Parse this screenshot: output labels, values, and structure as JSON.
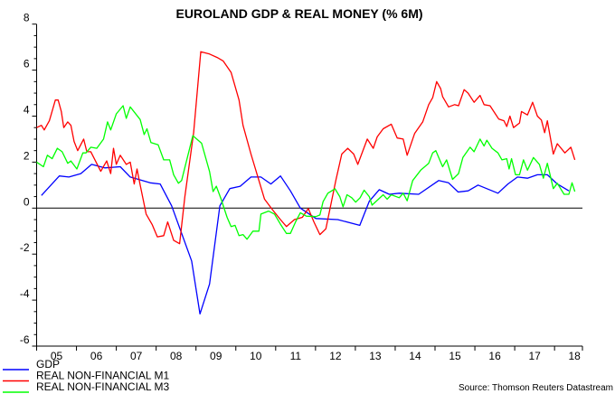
{
  "chart_data": {
    "type": "line",
    "title": "EUROLAND GDP & REAL MONEY (% 6M)",
    "source": "Source: Thomson Reuters Datastream",
    "xlim": [
      2005.0,
      2018.7
    ],
    "ylim": [
      -6,
      8
    ],
    "yticks": [
      -6,
      -4,
      -2,
      0,
      2,
      4,
      6,
      8
    ],
    "xtick_labels": [
      "05",
      "06",
      "07",
      "08",
      "09",
      "10",
      "11",
      "12",
      "13",
      "14",
      "15",
      "16",
      "17",
      "18"
    ],
    "grid": false,
    "zero_line": true,
    "legend_placement": "bottom-left",
    "series": [
      {
        "name": "GDP",
        "color": "#0000ff",
        "points": [
          [
            2005.12,
            0.55
          ],
          [
            2005.57,
            1.4
          ],
          [
            2005.81,
            1.35
          ],
          [
            2006.11,
            1.5
          ],
          [
            2006.38,
            1.9
          ],
          [
            2006.71,
            1.75
          ],
          [
            2007.1,
            1.8
          ],
          [
            2007.35,
            1.35
          ],
          [
            2007.85,
            1.1
          ],
          [
            2008.1,
            1.05
          ],
          [
            2008.39,
            0.1
          ],
          [
            2008.89,
            -2.3
          ],
          [
            2009.1,
            -4.6
          ],
          [
            2009.34,
            -3.3
          ],
          [
            2009.6,
            0.1
          ],
          [
            2009.85,
            0.85
          ],
          [
            2010.11,
            0.95
          ],
          [
            2010.38,
            1.35
          ],
          [
            2010.63,
            1.35
          ],
          [
            2010.88,
            1.05
          ],
          [
            2011.12,
            1.4
          ],
          [
            2011.37,
            0.75
          ],
          [
            2011.62,
            0.0
          ],
          [
            2012.01,
            -0.45
          ],
          [
            2012.56,
            -0.5
          ],
          [
            2013.11,
            -0.75
          ],
          [
            2013.35,
            0.3
          ],
          [
            2013.6,
            0.8
          ],
          [
            2013.85,
            0.6
          ],
          [
            2014.1,
            0.65
          ],
          [
            2014.59,
            0.6
          ],
          [
            2015.09,
            1.2
          ],
          [
            2015.34,
            1.1
          ],
          [
            2015.58,
            0.7
          ],
          [
            2015.83,
            0.75
          ],
          [
            2016.08,
            1.0
          ],
          [
            2016.58,
            0.65
          ],
          [
            2016.83,
            1.05
          ],
          [
            2017.07,
            1.35
          ],
          [
            2017.32,
            1.3
          ],
          [
            2017.57,
            1.45
          ],
          [
            2017.82,
            1.45
          ],
          [
            2018.07,
            1.05
          ],
          [
            2018.36,
            0.75
          ]
        ]
      },
      {
        "name": "REAL NON-FINANCIAL M1",
        "color": "#ff0000",
        "points": [
          [
            2005.0,
            3.5
          ],
          [
            2005.12,
            3.6
          ],
          [
            2005.19,
            3.4
          ],
          [
            2005.32,
            3.8
          ],
          [
            2005.47,
            4.7
          ],
          [
            2005.54,
            4.7
          ],
          [
            2005.62,
            4.2
          ],
          [
            2005.68,
            3.5
          ],
          [
            2005.78,
            3.75
          ],
          [
            2005.86,
            3.6
          ],
          [
            2005.94,
            2.9
          ],
          [
            2006.03,
            2.5
          ],
          [
            2006.18,
            3.0
          ],
          [
            2006.26,
            2.45
          ],
          [
            2006.36,
            2.45
          ],
          [
            2006.61,
            1.6
          ],
          [
            2006.76,
            2.05
          ],
          [
            2006.86,
            1.5
          ],
          [
            2006.93,
            2.6
          ],
          [
            2007.0,
            1.9
          ],
          [
            2007.1,
            2.3
          ],
          [
            2007.25,
            1.9
          ],
          [
            2007.35,
            2.0
          ],
          [
            2007.45,
            1.05
          ],
          [
            2007.52,
            1.7
          ],
          [
            2007.6,
            1.0
          ],
          [
            2007.75,
            -0.26
          ],
          [
            2007.9,
            -0.71
          ],
          [
            2008.03,
            -1.25
          ],
          [
            2008.19,
            -1.2
          ],
          [
            2008.29,
            -0.6
          ],
          [
            2008.44,
            -1.4
          ],
          [
            2008.59,
            -1.55
          ],
          [
            2008.72,
            0.5
          ],
          [
            2008.94,
            3.28
          ],
          [
            2009.12,
            6.8
          ],
          [
            2009.34,
            6.7
          ],
          [
            2009.53,
            6.55
          ],
          [
            2009.68,
            6.4
          ],
          [
            2009.88,
            5.9
          ],
          [
            2010.08,
            4.7
          ],
          [
            2010.18,
            3.6
          ],
          [
            2010.38,
            2.35
          ],
          [
            2010.58,
            1.2
          ],
          [
            2010.72,
            0.39
          ],
          [
            2010.92,
            -0.07
          ],
          [
            2011.12,
            -0.5
          ],
          [
            2011.27,
            -0.8
          ],
          [
            2011.47,
            -0.5
          ],
          [
            2011.67,
            -0.4
          ],
          [
            2011.82,
            -0.02
          ],
          [
            2011.96,
            -0.6
          ],
          [
            2012.11,
            -1.15
          ],
          [
            2012.26,
            -0.9
          ],
          [
            2012.51,
            1.2
          ],
          [
            2012.66,
            2.35
          ],
          [
            2012.81,
            2.6
          ],
          [
            2012.96,
            2.35
          ],
          [
            2013.06,
            1.9
          ],
          [
            2013.3,
            3.0
          ],
          [
            2013.45,
            2.6
          ],
          [
            2013.55,
            3.1
          ],
          [
            2013.7,
            3.45
          ],
          [
            2013.9,
            3.65
          ],
          [
            2014.05,
            3.05
          ],
          [
            2014.2,
            3.0
          ],
          [
            2014.3,
            2.3
          ],
          [
            2014.49,
            3.25
          ],
          [
            2014.69,
            3.75
          ],
          [
            2014.84,
            4.5
          ],
          [
            2014.94,
            4.8
          ],
          [
            2015.04,
            5.5
          ],
          [
            2015.14,
            5.2
          ],
          [
            2015.19,
            4.85
          ],
          [
            2015.34,
            4.4
          ],
          [
            2015.49,
            4.5
          ],
          [
            2015.59,
            4.45
          ],
          [
            2015.73,
            5.15
          ],
          [
            2015.83,
            5.0
          ],
          [
            2015.98,
            4.6
          ],
          [
            2016.13,
            4.9
          ],
          [
            2016.23,
            4.5
          ],
          [
            2016.38,
            4.45
          ],
          [
            2016.6,
            3.87
          ],
          [
            2016.73,
            3.8
          ],
          [
            2016.8,
            3.55
          ],
          [
            2016.88,
            4.0
          ],
          [
            2016.97,
            3.5
          ],
          [
            2017.12,
            3.7
          ],
          [
            2017.17,
            4.2
          ],
          [
            2017.32,
            4.05
          ],
          [
            2017.45,
            4.6
          ],
          [
            2017.57,
            4.0
          ],
          [
            2017.67,
            3.83
          ],
          [
            2017.75,
            3.28
          ],
          [
            2017.82,
            3.8
          ],
          [
            2017.97,
            2.35
          ],
          [
            2018.07,
            2.8
          ],
          [
            2018.26,
            2.4
          ],
          [
            2018.41,
            2.65
          ],
          [
            2018.51,
            2.1
          ]
        ]
      },
      {
        "name": "REAL NON-FINANCIAL M3",
        "color": "#00ff00",
        "points": [
          [
            2005.0,
            2.0
          ],
          [
            2005.17,
            1.8
          ],
          [
            2005.27,
            2.3
          ],
          [
            2005.39,
            2.15
          ],
          [
            2005.52,
            2.6
          ],
          [
            2005.64,
            2.45
          ],
          [
            2005.78,
            1.95
          ],
          [
            2005.86,
            2.05
          ],
          [
            2006.01,
            1.7
          ],
          [
            2006.16,
            2.4
          ],
          [
            2006.24,
            2.4
          ],
          [
            2006.36,
            2.65
          ],
          [
            2006.51,
            2.6
          ],
          [
            2006.68,
            3.0
          ],
          [
            2006.78,
            3.75
          ],
          [
            2006.86,
            3.4
          ],
          [
            2007.0,
            4.1
          ],
          [
            2007.17,
            4.45
          ],
          [
            2007.25,
            3.9
          ],
          [
            2007.35,
            4.4
          ],
          [
            2007.6,
            3.85
          ],
          [
            2007.7,
            3.2
          ],
          [
            2007.77,
            3.45
          ],
          [
            2007.87,
            2.85
          ],
          [
            2008.05,
            2.75
          ],
          [
            2008.19,
            2.1
          ],
          [
            2008.34,
            2.1
          ],
          [
            2008.44,
            1.45
          ],
          [
            2008.56,
            1.08
          ],
          [
            2008.64,
            1.2
          ],
          [
            2008.92,
            3.15
          ],
          [
            2009.14,
            2.82
          ],
          [
            2009.34,
            1.59
          ],
          [
            2009.43,
            0.72
          ],
          [
            2009.51,
            0.95
          ],
          [
            2009.63,
            0.39
          ],
          [
            2009.78,
            -0.4
          ],
          [
            2009.88,
            -0.8
          ],
          [
            2009.98,
            -0.75
          ],
          [
            2010.08,
            -1.2
          ],
          [
            2010.18,
            -1.15
          ],
          [
            2010.28,
            -1.35
          ],
          [
            2010.43,
            -1.0
          ],
          [
            2010.58,
            -1.0
          ],
          [
            2010.63,
            -0.26
          ],
          [
            2010.82,
            -0.13
          ],
          [
            2010.97,
            -0.26
          ],
          [
            2011.12,
            -0.7
          ],
          [
            2011.27,
            -1.1
          ],
          [
            2011.37,
            -1.1
          ],
          [
            2011.5,
            -0.6
          ],
          [
            2011.62,
            -0.2
          ],
          [
            2011.77,
            -0.35
          ],
          [
            2012.01,
            -0.37
          ],
          [
            2012.11,
            -0.3
          ],
          [
            2012.19,
            0.28
          ],
          [
            2012.31,
            0.65
          ],
          [
            2012.49,
            0.84
          ],
          [
            2012.61,
            0.5
          ],
          [
            2012.69,
            0.06
          ],
          [
            2012.79,
            0.58
          ],
          [
            2012.91,
            0.45
          ],
          [
            2013.01,
            0.26
          ],
          [
            2013.12,
            0.45
          ],
          [
            2013.22,
            0.78
          ],
          [
            2013.35,
            0.5
          ],
          [
            2013.42,
            0.13
          ],
          [
            2013.7,
            0.58
          ],
          [
            2013.8,
            0.39
          ],
          [
            2013.9,
            0.58
          ],
          [
            2014.1,
            0.45
          ],
          [
            2014.2,
            0.65
          ],
          [
            2014.3,
            0.32
          ],
          [
            2014.44,
            1.2
          ],
          [
            2014.64,
            1.65
          ],
          [
            2014.84,
            1.95
          ],
          [
            2014.94,
            2.4
          ],
          [
            2015.02,
            2.5
          ],
          [
            2015.19,
            1.8
          ],
          [
            2015.29,
            2.1
          ],
          [
            2015.44,
            1.25
          ],
          [
            2015.59,
            1.5
          ],
          [
            2015.7,
            2.2
          ],
          [
            2015.88,
            2.65
          ],
          [
            2015.98,
            2.45
          ],
          [
            2016.13,
            3.0
          ],
          [
            2016.23,
            2.7
          ],
          [
            2016.3,
            2.95
          ],
          [
            2016.43,
            2.6
          ],
          [
            2016.58,
            2.4
          ],
          [
            2016.68,
            2.1
          ],
          [
            2016.8,
            2.15
          ],
          [
            2016.86,
            1.7
          ],
          [
            2016.92,
            2.15
          ],
          [
            2017.02,
            1.45
          ],
          [
            2017.12,
            1.45
          ],
          [
            2017.22,
            2.1
          ],
          [
            2017.32,
            1.65
          ],
          [
            2017.47,
            2.2
          ],
          [
            2017.62,
            1.9
          ],
          [
            2017.72,
            1.3
          ],
          [
            2017.82,
            1.95
          ],
          [
            2017.97,
            0.85
          ],
          [
            2018.07,
            1.08
          ],
          [
            2018.24,
            0.6
          ],
          [
            2018.36,
            0.6
          ],
          [
            2018.44,
            1.1
          ],
          [
            2018.51,
            0.72
          ]
        ]
      }
    ]
  }
}
